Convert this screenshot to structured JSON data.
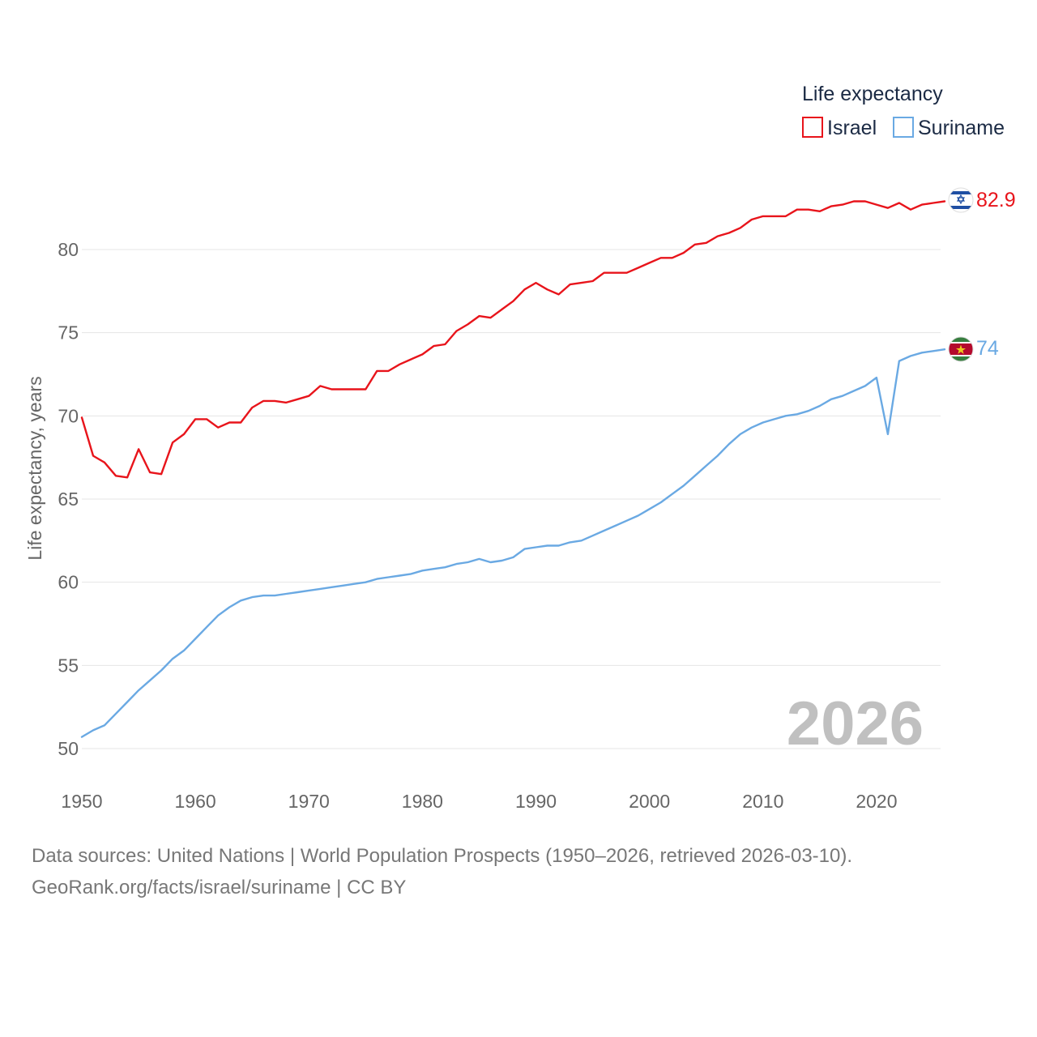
{
  "legend": {
    "title": "Life expectancy",
    "items": [
      {
        "label": "Israel",
        "color": "#e8141b"
      },
      {
        "label": "Suriname",
        "color": "#6aa9e3"
      }
    ]
  },
  "footer": {
    "sources": "Data sources: United Nations | World Population Prospects (1950–2026, retrieved 2026-03-10).",
    "credit": "GeoRank.org/facts/israel/suriname | CC BY"
  },
  "chart_data": {
    "type": "line",
    "title": "Life expectancy",
    "xlabel": "",
    "ylabel": "Life expectancy, years",
    "xlim": [
      1950,
      2026
    ],
    "ylim": [
      50,
      85
    ],
    "grid": true,
    "legend_position": "top-right",
    "year_label": "2026",
    "x_ticks": [
      "1950",
      "1960",
      "1970",
      "1980",
      "1990",
      "2000",
      "2010",
      "2020"
    ],
    "y_ticks": [
      "50",
      "55",
      "60",
      "65",
      "70",
      "75",
      "80"
    ],
    "x": [
      1950,
      1951,
      1952,
      1953,
      1954,
      1955,
      1956,
      1957,
      1958,
      1959,
      1960,
      1961,
      1962,
      1963,
      1964,
      1965,
      1966,
      1967,
      1968,
      1969,
      1970,
      1971,
      1972,
      1973,
      1974,
      1975,
      1976,
      1977,
      1978,
      1979,
      1980,
      1981,
      1982,
      1983,
      1984,
      1985,
      1986,
      1987,
      1988,
      1989,
      1990,
      1991,
      1992,
      1993,
      1994,
      1995,
      1996,
      1997,
      1998,
      1999,
      2000,
      2001,
      2002,
      2003,
      2004,
      2005,
      2006,
      2007,
      2008,
      2009,
      2010,
      2011,
      2012,
      2013,
      2014,
      2015,
      2016,
      2017,
      2018,
      2019,
      2020,
      2021,
      2022,
      2023,
      2024,
      2025,
      2026
    ],
    "series": [
      {
        "name": "Israel",
        "color": "#e8141b",
        "end_label": "82.9",
        "values": [
          69.9,
          67.6,
          67.2,
          66.4,
          66.3,
          68.0,
          66.6,
          66.5,
          68.4,
          68.9,
          69.8,
          69.8,
          69.3,
          69.6,
          69.6,
          70.5,
          70.9,
          70.9,
          70.8,
          71.0,
          71.2,
          71.8,
          71.6,
          71.6,
          71.6,
          71.6,
          72.7,
          72.7,
          73.1,
          73.4,
          73.7,
          74.2,
          74.3,
          75.1,
          75.5,
          76.0,
          75.9,
          76.4,
          76.9,
          77.6,
          78.0,
          77.6,
          77.3,
          77.9,
          78.0,
          78.1,
          78.6,
          78.6,
          78.6,
          78.9,
          79.2,
          79.5,
          79.5,
          79.8,
          80.3,
          80.4,
          80.8,
          81.0,
          81.3,
          81.8,
          82.0,
          82.0,
          82.0,
          82.4,
          82.4,
          82.3,
          82.6,
          82.7,
          82.9,
          82.9,
          82.7,
          82.5,
          82.8,
          82.4,
          82.7,
          82.8,
          82.9
        ]
      },
      {
        "name": "Suriname",
        "color": "#6aa9e3",
        "end_label": "74",
        "values": [
          50.7,
          51.1,
          51.4,
          52.1,
          52.8,
          53.5,
          54.1,
          54.7,
          55.4,
          55.9,
          56.6,
          57.3,
          58.0,
          58.5,
          58.9,
          59.1,
          59.2,
          59.2,
          59.3,
          59.4,
          59.5,
          59.6,
          59.7,
          59.8,
          59.9,
          60.0,
          60.2,
          60.3,
          60.4,
          60.5,
          60.7,
          60.8,
          60.9,
          61.1,
          61.2,
          61.4,
          61.2,
          61.3,
          61.5,
          62.0,
          62.1,
          62.2,
          62.2,
          62.4,
          62.5,
          62.8,
          63.1,
          63.4,
          63.7,
          64.0,
          64.4,
          64.8,
          65.3,
          65.8,
          66.4,
          67.0,
          67.6,
          68.3,
          68.9,
          69.3,
          69.6,
          69.8,
          70.0,
          70.1,
          70.3,
          70.6,
          71.0,
          71.2,
          71.5,
          71.8,
          72.3,
          68.9,
          73.3,
          73.6,
          73.8,
          73.9,
          74.0
        ]
      }
    ]
  }
}
